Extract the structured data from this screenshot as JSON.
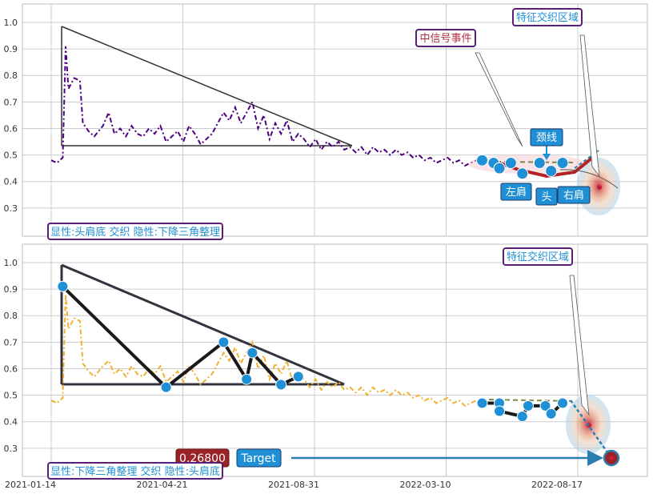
{
  "colors": {
    "grid": "#cccccc",
    "axis_border": "#bbbbbb",
    "top_series": "#4b0082",
    "bottom_series": "#f0b030",
    "triangle": "#333333",
    "zigzag": "#1a1a1a",
    "hs_line": "#b22222",
    "marker": "#1f8fd6",
    "label_bg": "#1f8fd6",
    "box_border": "#5a1e78",
    "box_text_blue": "#1f8fd6",
    "box_text_red": "#b03040",
    "target_bg": "#9b2226"
  },
  "chart_data": [
    {
      "type": "line",
      "panel": "top",
      "ylim": [
        0.2,
        1.03
      ],
      "yticks": [
        "1.0",
        "0.9",
        "0.8",
        "0.7",
        "0.6",
        "0.5",
        "0.4",
        "0.3"
      ],
      "grid": true,
      "series": [
        {
          "style": "dash-dot",
          "points": [
            [
              0.0,
              0.48
            ],
            [
              0.01,
              0.47
            ],
            [
              0.02,
              0.49
            ],
            [
              0.025,
              0.91
            ],
            [
              0.03,
              0.75
            ],
            [
              0.04,
              0.79
            ],
            [
              0.05,
              0.78
            ],
            [
              0.055,
              0.62
            ],
            [
              0.065,
              0.59
            ],
            [
              0.075,
              0.57
            ],
            [
              0.09,
              0.61
            ],
            [
              0.1,
              0.66
            ],
            [
              0.11,
              0.58
            ],
            [
              0.12,
              0.6
            ],
            [
              0.13,
              0.57
            ],
            [
              0.14,
              0.61
            ],
            [
              0.15,
              0.58
            ],
            [
              0.16,
              0.57
            ],
            [
              0.17,
              0.6
            ],
            [
              0.18,
              0.58
            ],
            [
              0.19,
              0.61
            ],
            [
              0.2,
              0.55
            ],
            [
              0.21,
              0.57
            ],
            [
              0.22,
              0.59
            ],
            [
              0.23,
              0.55
            ],
            [
              0.24,
              0.61
            ],
            [
              0.25,
              0.58
            ],
            [
              0.26,
              0.54
            ],
            [
              0.27,
              0.56
            ],
            [
              0.28,
              0.58
            ],
            [
              0.29,
              0.62
            ],
            [
              0.3,
              0.66
            ],
            [
              0.31,
              0.63
            ],
            [
              0.32,
              0.68
            ],
            [
              0.33,
              0.62
            ],
            [
              0.34,
              0.66
            ],
            [
              0.35,
              0.7
            ],
            [
              0.36,
              0.6
            ],
            [
              0.37,
              0.65
            ],
            [
              0.38,
              0.56
            ],
            [
              0.39,
              0.62
            ],
            [
              0.4,
              0.58
            ],
            [
              0.41,
              0.63
            ],
            [
              0.42,
              0.55
            ],
            [
              0.43,
              0.58
            ],
            [
              0.44,
              0.56
            ],
            [
              0.45,
              0.53
            ],
            [
              0.46,
              0.56
            ],
            [
              0.47,
              0.52
            ],
            [
              0.48,
              0.55
            ],
            [
              0.49,
              0.53
            ],
            [
              0.5,
              0.55
            ],
            [
              0.51,
              0.52
            ],
            [
              0.52,
              0.53
            ],
            [
              0.53,
              0.51
            ],
            [
              0.54,
              0.53
            ],
            [
              0.55,
              0.5
            ],
            [
              0.56,
              0.53
            ],
            [
              0.57,
              0.51
            ],
            [
              0.58,
              0.52
            ],
            [
              0.59,
              0.5
            ],
            [
              0.6,
              0.52
            ],
            [
              0.61,
              0.5
            ],
            [
              0.62,
              0.51
            ],
            [
              0.63,
              0.49
            ],
            [
              0.64,
              0.5
            ],
            [
              0.65,
              0.48
            ],
            [
              0.66,
              0.49
            ],
            [
              0.67,
              0.47
            ],
            [
              0.68,
              0.48
            ],
            [
              0.69,
              0.49
            ],
            [
              0.7,
              0.47
            ],
            [
              0.71,
              0.48
            ],
            [
              0.72,
              0.46
            ],
            [
              0.73,
              0.47
            ],
            [
              0.74,
              0.48
            ],
            [
              0.75,
              0.46
            ]
          ]
        }
      ],
      "pattern_points": [
        [
          0.75,
          0.48
        ],
        [
          0.77,
          0.47
        ],
        [
          0.78,
          0.45
        ],
        [
          0.8,
          0.47
        ],
        [
          0.82,
          0.43
        ],
        [
          0.85,
          0.47
        ],
        [
          0.87,
          0.44
        ],
        [
          0.89,
          0.47
        ]
      ],
      "labels": {
        "left_shoulder": "左肩",
        "head": "头",
        "right_shoulder": "右肩",
        "neckline": "颈线",
        "signal_event": "中信号事件",
        "feature_zone": "特征交织区域",
        "caption": "显性:头肩底 交织 隐性:下降三角整理"
      }
    },
    {
      "type": "line",
      "panel": "bottom",
      "ylim": [
        0.2,
        1.03
      ],
      "yticks": [
        "1.0",
        "0.9",
        "0.8",
        "0.7",
        "0.6",
        "0.5",
        "0.4",
        "0.3"
      ],
      "xticks": [
        "2021-01-14",
        "2021-04-21",
        "2021-08-31",
        "2022-03-10",
        "2022-08-17"
      ],
      "grid": true,
      "series": [
        {
          "style": "dash-dot",
          "points": [
            [
              0.0,
              0.48
            ],
            [
              0.01,
              0.47
            ],
            [
              0.02,
              0.49
            ],
            [
              0.025,
              0.88
            ],
            [
              0.03,
              0.75
            ],
            [
              0.04,
              0.79
            ],
            [
              0.05,
              0.78
            ],
            [
              0.055,
              0.62
            ],
            [
              0.065,
              0.59
            ],
            [
              0.075,
              0.57
            ],
            [
              0.09,
              0.61
            ],
            [
              0.1,
              0.63
            ],
            [
              0.11,
              0.58
            ],
            [
              0.12,
              0.6
            ],
            [
              0.13,
              0.57
            ],
            [
              0.14,
              0.61
            ],
            [
              0.15,
              0.58
            ],
            [
              0.16,
              0.57
            ],
            [
              0.17,
              0.6
            ],
            [
              0.18,
              0.58
            ],
            [
              0.19,
              0.61
            ],
            [
              0.2,
              0.55
            ],
            [
              0.21,
              0.57
            ],
            [
              0.22,
              0.59
            ],
            [
              0.23,
              0.55
            ],
            [
              0.24,
              0.61
            ],
            [
              0.25,
              0.58
            ],
            [
              0.26,
              0.54
            ],
            [
              0.27,
              0.56
            ],
            [
              0.28,
              0.58
            ],
            [
              0.29,
              0.62
            ],
            [
              0.3,
              0.66
            ],
            [
              0.31,
              0.63
            ],
            [
              0.32,
              0.68
            ],
            [
              0.33,
              0.62
            ],
            [
              0.34,
              0.66
            ],
            [
              0.35,
              0.7
            ],
            [
              0.36,
              0.6
            ],
            [
              0.37,
              0.65
            ],
            [
              0.38,
              0.56
            ],
            [
              0.39,
              0.62
            ],
            [
              0.4,
              0.58
            ],
            [
              0.41,
              0.63
            ],
            [
              0.42,
              0.55
            ],
            [
              0.43,
              0.58
            ],
            [
              0.44,
              0.56
            ],
            [
              0.45,
              0.53
            ],
            [
              0.46,
              0.56
            ],
            [
              0.47,
              0.52
            ],
            [
              0.48,
              0.55
            ],
            [
              0.49,
              0.53
            ],
            [
              0.5,
              0.55
            ],
            [
              0.51,
              0.52
            ],
            [
              0.52,
              0.53
            ],
            [
              0.53,
              0.51
            ],
            [
              0.54,
              0.53
            ],
            [
              0.55,
              0.5
            ],
            [
              0.56,
              0.53
            ],
            [
              0.57,
              0.51
            ],
            [
              0.58,
              0.52
            ],
            [
              0.59,
              0.5
            ],
            [
              0.6,
              0.52
            ],
            [
              0.61,
              0.5
            ],
            [
              0.62,
              0.51
            ],
            [
              0.63,
              0.49
            ],
            [
              0.64,
              0.5
            ],
            [
              0.65,
              0.48
            ],
            [
              0.66,
              0.49
            ],
            [
              0.67,
              0.47
            ],
            [
              0.68,
              0.48
            ],
            [
              0.69,
              0.49
            ],
            [
              0.7,
              0.47
            ],
            [
              0.71,
              0.48
            ],
            [
              0.72,
              0.46
            ],
            [
              0.73,
              0.47
            ],
            [
              0.74,
              0.48
            ],
            [
              0.75,
              0.46
            ]
          ]
        }
      ],
      "triangle_zigzag": [
        [
          0.02,
          0.91
        ],
        [
          0.2,
          0.53
        ],
        [
          0.3,
          0.7
        ],
        [
          0.34,
          0.56
        ],
        [
          0.35,
          0.66
        ],
        [
          0.4,
          0.54
        ],
        [
          0.43,
          0.57
        ]
      ],
      "pattern_points": [
        [
          0.75,
          0.47
        ],
        [
          0.78,
          0.47
        ],
        [
          0.78,
          0.44
        ],
        [
          0.82,
          0.42
        ],
        [
          0.83,
          0.46
        ],
        [
          0.86,
          0.46
        ],
        [
          0.87,
          0.43
        ],
        [
          0.89,
          0.47
        ]
      ],
      "target_value": "0.26800",
      "target_label": "Target",
      "labels": {
        "feature_zone": "特征交织区域",
        "caption": "显性:下降三角整理 交织 隐性:头肩底"
      }
    }
  ]
}
